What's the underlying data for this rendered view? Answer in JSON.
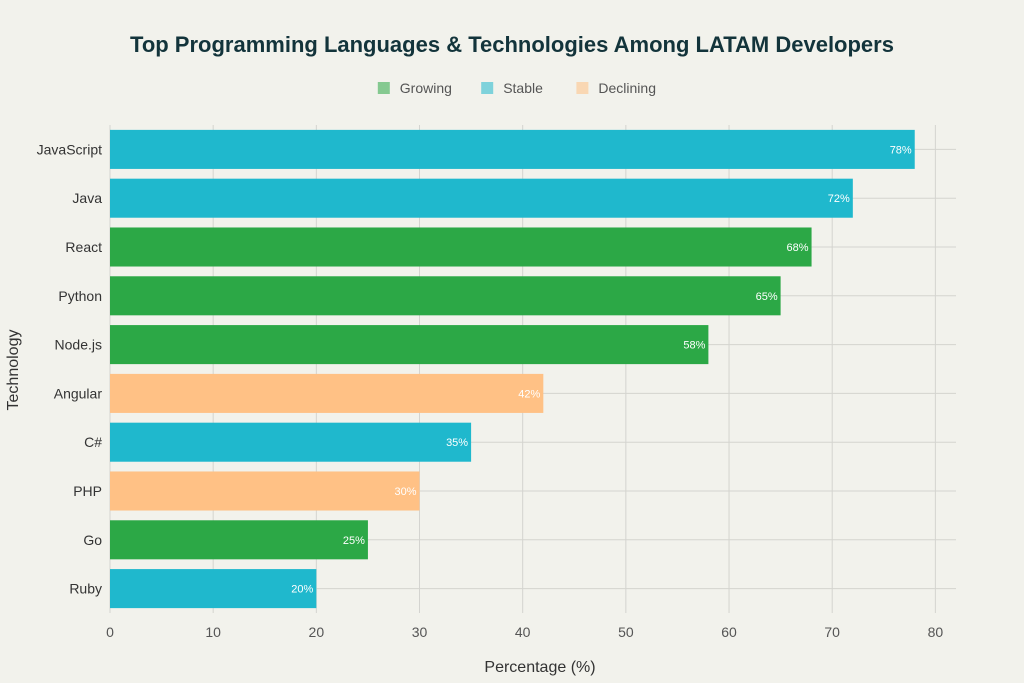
{
  "chart_data": {
    "type": "bar",
    "orientation": "horizontal",
    "title": "Top Programming Languages & Technologies Among LATAM Developers",
    "xlabel": "Percentage (%)",
    "ylabel": "Technology",
    "xlim": [
      0,
      82
    ],
    "xticks": [
      0,
      10,
      20,
      30,
      40,
      50,
      60,
      70,
      80
    ],
    "grid": true,
    "legend_position": "top-center",
    "legend": [
      {
        "name": "Growing",
        "color": "#2ca846"
      },
      {
        "name": "Stable",
        "color": "#1fb8cd"
      },
      {
        "name": "Declining",
        "color": "#ffc185"
      }
    ],
    "categories": [
      "JavaScript",
      "Java",
      "React",
      "Python",
      "Node.js",
      "Angular",
      "C#",
      "PHP",
      "Go",
      "Ruby"
    ],
    "values": [
      78,
      72,
      68,
      65,
      58,
      42,
      35,
      30,
      25,
      20
    ],
    "labels": [
      "78%",
      "72%",
      "68%",
      "65%",
      "58%",
      "42%",
      "35%",
      "30%",
      "25%",
      "20%"
    ],
    "trend": [
      "Stable",
      "Stable",
      "Growing",
      "Growing",
      "Growing",
      "Declining",
      "Stable",
      "Declining",
      "Growing",
      "Stable"
    ]
  }
}
